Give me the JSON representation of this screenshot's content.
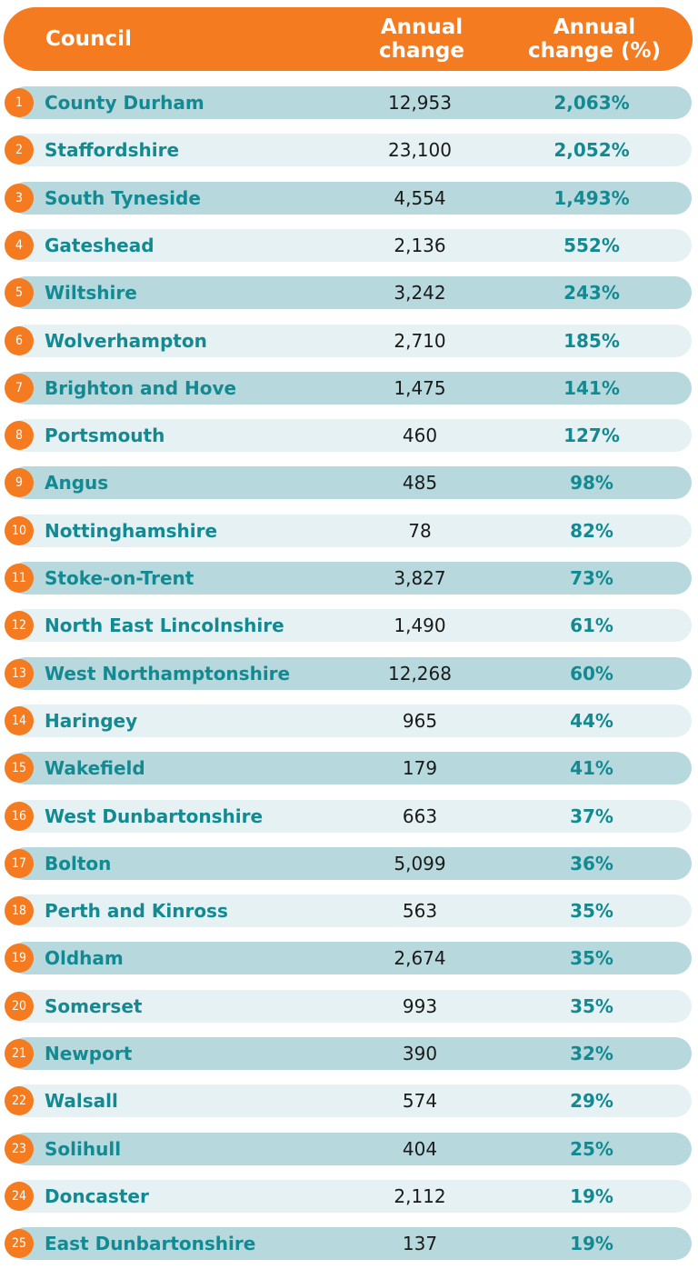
{
  "header": {
    "council": "Council",
    "annual_change": "Annual\nchange",
    "annual_change_pct": "Annual\nchange (%)"
  },
  "colors": {
    "accent_orange": "#f47b20",
    "teal_text": "#138a92",
    "row_dark": "#b7d9dd",
    "row_light": "#e5f1f3"
  },
  "chart_data": {
    "type": "table",
    "columns": [
      "Council",
      "Annual change",
      "Annual change (%)"
    ],
    "rows": [
      {
        "rank": "1",
        "council": "County Durham",
        "change": "12,953",
        "pct": "2,063%"
      },
      {
        "rank": "2",
        "council": "Staffordshire",
        "change": "23,100",
        "pct": "2,052%"
      },
      {
        "rank": "3",
        "council": "South Tyneside",
        "change": "4,554",
        "pct": "1,493%"
      },
      {
        "rank": "4",
        "council": "Gateshead",
        "change": "2,136",
        "pct": "552%"
      },
      {
        "rank": "5",
        "council": "Wiltshire",
        "change": "3,242",
        "pct": "243%"
      },
      {
        "rank": "6",
        "council": "Wolverhampton",
        "change": "2,710",
        "pct": "185%"
      },
      {
        "rank": "7",
        "council": "Brighton and Hove",
        "change": "1,475",
        "pct": "141%"
      },
      {
        "rank": "8",
        "council": "Portsmouth",
        "change": "460",
        "pct": "127%"
      },
      {
        "rank": "9",
        "council": "Angus",
        "change": "485",
        "pct": "98%"
      },
      {
        "rank": "10",
        "council": "Nottinghamshire",
        "change": "78",
        "pct": "82%"
      },
      {
        "rank": "11",
        "council": "Stoke-on-Trent",
        "change": "3,827",
        "pct": "73%"
      },
      {
        "rank": "12",
        "council": "North East Lincolnshire",
        "change": "1,490",
        "pct": "61%"
      },
      {
        "rank": "13",
        "council": "West Northamptonshire",
        "change": "12,268",
        "pct": "60%"
      },
      {
        "rank": "14",
        "council": "Haringey",
        "change": "965",
        "pct": "44%"
      },
      {
        "rank": "15",
        "council": "Wakefield",
        "change": "179",
        "pct": "41%"
      },
      {
        "rank": "16",
        "council": "West Dunbartonshire",
        "change": "663",
        "pct": "37%"
      },
      {
        "rank": "17",
        "council": "Bolton",
        "change": "5,099",
        "pct": "36%"
      },
      {
        "rank": "18",
        "council": "Perth and Kinross",
        "change": "563",
        "pct": "35%"
      },
      {
        "rank": "19",
        "council": "Oldham",
        "change": "2,674",
        "pct": "35%"
      },
      {
        "rank": "20",
        "council": "Somerset",
        "change": "993",
        "pct": "35%"
      },
      {
        "rank": "21",
        "council": "Newport",
        "change": "390",
        "pct": "32%"
      },
      {
        "rank": "22",
        "council": "Walsall",
        "change": "574",
        "pct": "29%"
      },
      {
        "rank": "23",
        "council": "Solihull",
        "change": "404",
        "pct": "25%"
      },
      {
        "rank": "24",
        "council": "Doncaster",
        "change": "2,112",
        "pct": "19%"
      },
      {
        "rank": "25",
        "council": "East Dunbartonshire",
        "change": "137",
        "pct": "19%"
      }
    ]
  }
}
